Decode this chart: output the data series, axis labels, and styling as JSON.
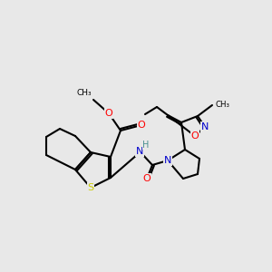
{
  "bg_color": "#e8e8e8",
  "atom_colors": {
    "C": "#000000",
    "N": "#0000cc",
    "O": "#ff0000",
    "S": "#cccc00",
    "H": "#4a9090"
  },
  "lw": 1.5,
  "fs": 8.0
}
